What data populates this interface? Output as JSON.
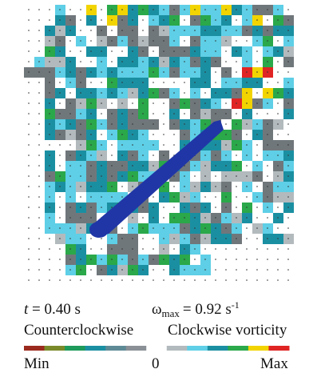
{
  "annotations": {
    "time": {
      "symbol": "t",
      "rest": "= 0.40 s"
    },
    "omega": {
      "symbol": "ω",
      "subscript": "max",
      "rest": "= 0.92 s",
      "superscript": "-1"
    }
  },
  "colorbar": {
    "left_label": "Counterclockwise",
    "right_label": "Clockwise vorticity",
    "min_label": "Min",
    "zero_label": "0",
    "max_label": "Max"
  }
}
